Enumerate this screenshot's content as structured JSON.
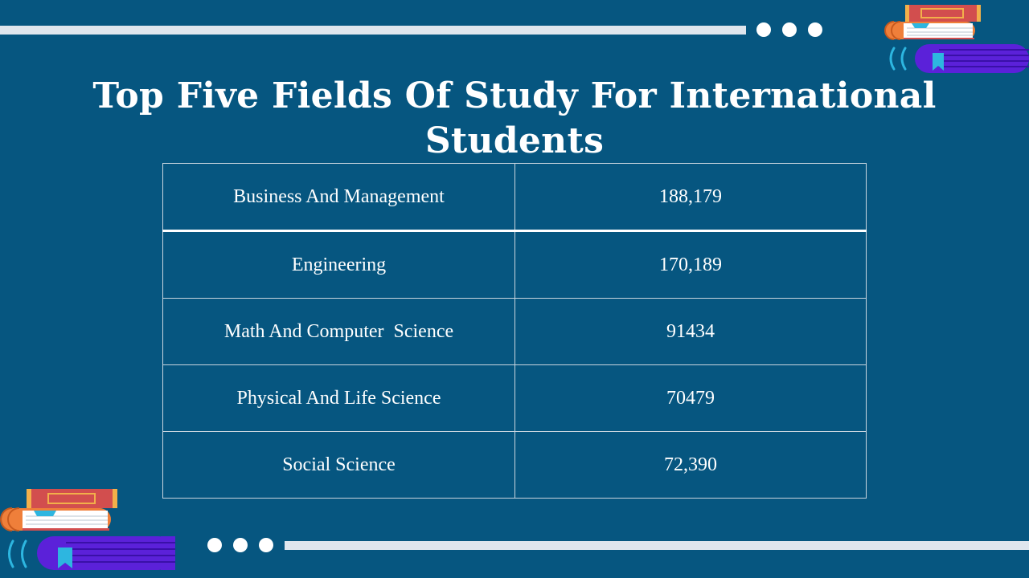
{
  "slide": {
    "title": "Top Five Fields Of Study For International Students"
  },
  "table": {
    "rows": [
      {
        "field": "Business And Management",
        "value": "188,179"
      },
      {
        "field": "Engineering",
        "value": "170,189"
      },
      {
        "field": "Math And Computer  Science",
        "value": "91434"
      },
      {
        "field": "Physical And Life Science",
        "value": "70479"
      },
      {
        "field": "Social Science",
        "value": "72,390"
      }
    ]
  },
  "colors": {
    "background": "#065680",
    "bar": "#dfe6ee",
    "book_red": "#d24e4e",
    "book_orange": "#ef7f3a",
    "book_purple": "#5b21d9",
    "bookmark_cyan": "#2db6e0"
  },
  "decor": {
    "top_right_icon": "book-stack-icon",
    "bottom_left_icon": "book-stack-icon"
  }
}
